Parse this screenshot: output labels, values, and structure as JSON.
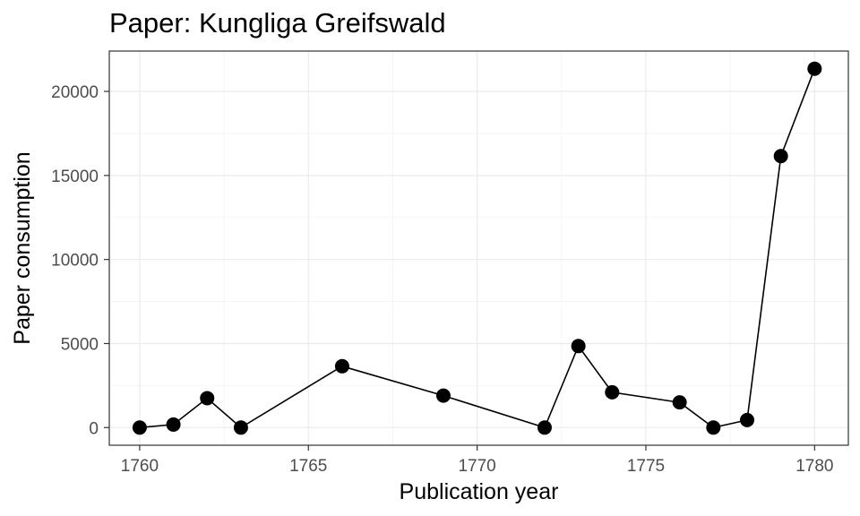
{
  "chart_data": {
    "type": "line",
    "title": "Paper: Kungliga Greifswald",
    "xlabel": "Publication year",
    "ylabel": "Paper consumption",
    "xlim": [
      1759.1,
      1781.0
    ],
    "ylim": [
      -1050,
      22400
    ],
    "x_ticks": [
      1760,
      1765,
      1770,
      1775,
      1780
    ],
    "y_ticks": [
      0,
      5000,
      10000,
      15000,
      20000
    ],
    "grid": true,
    "legend": "none",
    "series": [
      {
        "points": [
          {
            "x": 1760,
            "y": 0
          },
          {
            "x": 1761,
            "y": 180
          },
          {
            "x": 1762,
            "y": 1750
          },
          {
            "x": 1763,
            "y": 0
          },
          {
            "x": 1766,
            "y": 3650
          },
          {
            "x": 1769,
            "y": 1900
          },
          {
            "x": 1772,
            "y": 0
          },
          {
            "x": 1773,
            "y": 4850
          },
          {
            "x": 1774,
            "y": 2100
          },
          {
            "x": 1776,
            "y": 1500
          },
          {
            "x": 1777,
            "y": 0
          },
          {
            "x": 1778,
            "y": 450
          },
          {
            "x": 1779,
            "y": 16150
          },
          {
            "x": 1780,
            "y": 21350
          }
        ]
      }
    ],
    "colors": {
      "line": "#000000",
      "points": "#000000",
      "grid": "#ebebeb",
      "border": "#333333"
    }
  }
}
